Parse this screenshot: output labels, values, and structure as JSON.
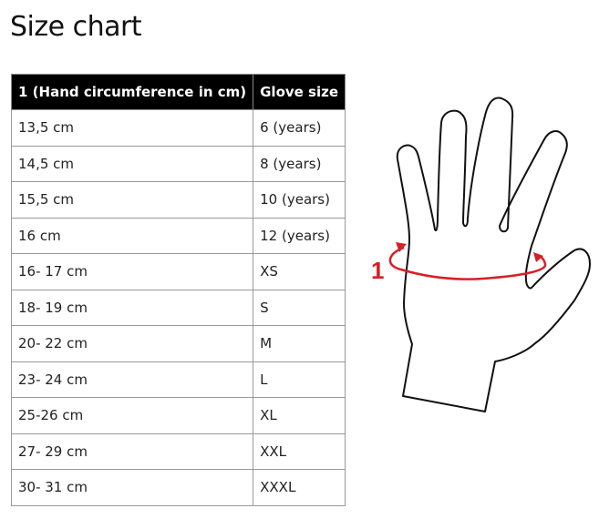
{
  "title": "Size chart",
  "table": {
    "headers": [
      "1 (Hand circumference in cm)",
      "Glove size"
    ],
    "rows": [
      [
        "13,5 cm",
        "6 (years)"
      ],
      [
        "14,5 cm",
        "8 (years)"
      ],
      [
        "15,5 cm",
        "10 (years)"
      ],
      [
        "16 cm",
        "12 (years)"
      ],
      [
        "16- 17 cm",
        "XS"
      ],
      [
        "18- 19 cm",
        "S"
      ],
      [
        "20- 22 cm",
        "M"
      ],
      [
        "23- 24 cm",
        "L"
      ],
      [
        "25-26 cm",
        "XL"
      ],
      [
        "27- 29 cm",
        "XXL"
      ],
      [
        "30- 31 cm",
        "XXXL"
      ]
    ]
  },
  "diagram": {
    "marker_label": "1",
    "accent_color": "#d61f26"
  }
}
